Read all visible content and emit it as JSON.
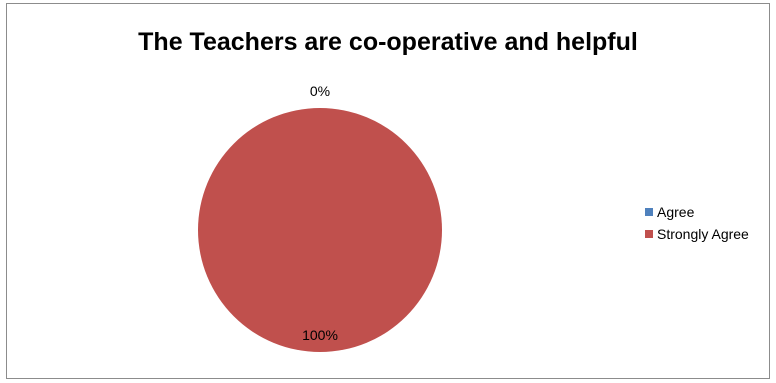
{
  "chart_data": {
    "type": "pie",
    "title": "The Teachers are co-operative and helpful",
    "categories": [
      "Agree",
      "Strongly Agree"
    ],
    "values": [
      0,
      100
    ],
    "data_labels": [
      "0%",
      "100%"
    ],
    "colors": [
      "#4f81bd",
      "#c0504d"
    ],
    "legend_position": "right"
  }
}
